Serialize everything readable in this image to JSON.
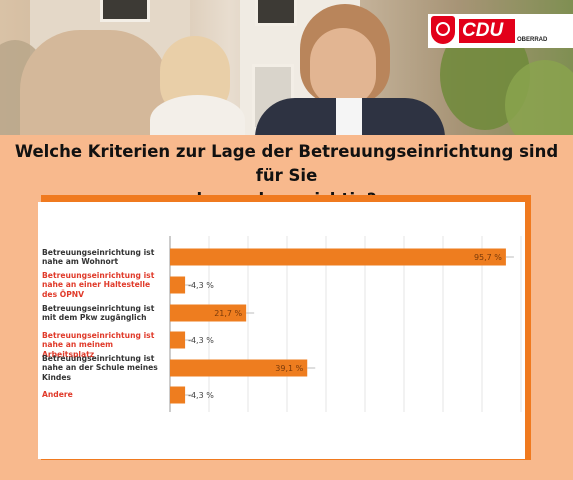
{
  "logo": {
    "brand": "CDU",
    "sub": "OBERRAD"
  },
  "heading": {
    "line1": "Welche Kriterien zur Lage der Betreuungseinrichtung sind für Sie",
    "line2": "besonders wichtig?"
  },
  "colors": {
    "bar": "#ee7d1f",
    "heading_bg": "#f8b98d",
    "accent": "#f07a1f",
    "highlight_label": "#e03a2a"
  },
  "chart_data": {
    "type": "bar",
    "orientation": "horizontal",
    "categories": [
      "Betreuungseinrichtung ist nahe am Wohnort",
      "Betreuungseinrichtung ist nahe an einer Haltestelle des ÖPNV",
      "Betreuungseinrichtung ist mit dem Pkw zugänglich",
      "Betreuungseinrichtung ist nahe an meinem Arbeitsplatz",
      "Betreuungseinrichtung ist nahe an der Schule meines Kindes",
      "Andere"
    ],
    "label_lines": [
      [
        "Betreuungseinrichtung ist",
        "nahe am Wohnort"
      ],
      [
        "Betreuungseinrichtung ist",
        "nahe an einer Haltestelle",
        "des ÖPNV"
      ],
      [
        "Betreuungseinrichtung ist",
        "mit dem Pkw zugänglich"
      ],
      [
        "Betreuungseinrichtung ist",
        "nahe an meinem Arbeitsplatz"
      ],
      [
        "Betreuungseinrichtung ist",
        "nahe an der Schule meines",
        "Kindes"
      ],
      [
        "Andere"
      ]
    ],
    "label_style": [
      "dark",
      "red",
      "dark",
      "red",
      "dark",
      "red"
    ],
    "values": [
      95.7,
      4.3,
      21.7,
      4.3,
      39.1,
      4.3
    ],
    "value_labels": [
      "95,7 %",
      "4,3 %",
      "21,7 %",
      "4,3 %",
      "39,1 %",
      "4,3 %"
    ],
    "xlim": [
      0,
      100
    ],
    "grid": true
  }
}
